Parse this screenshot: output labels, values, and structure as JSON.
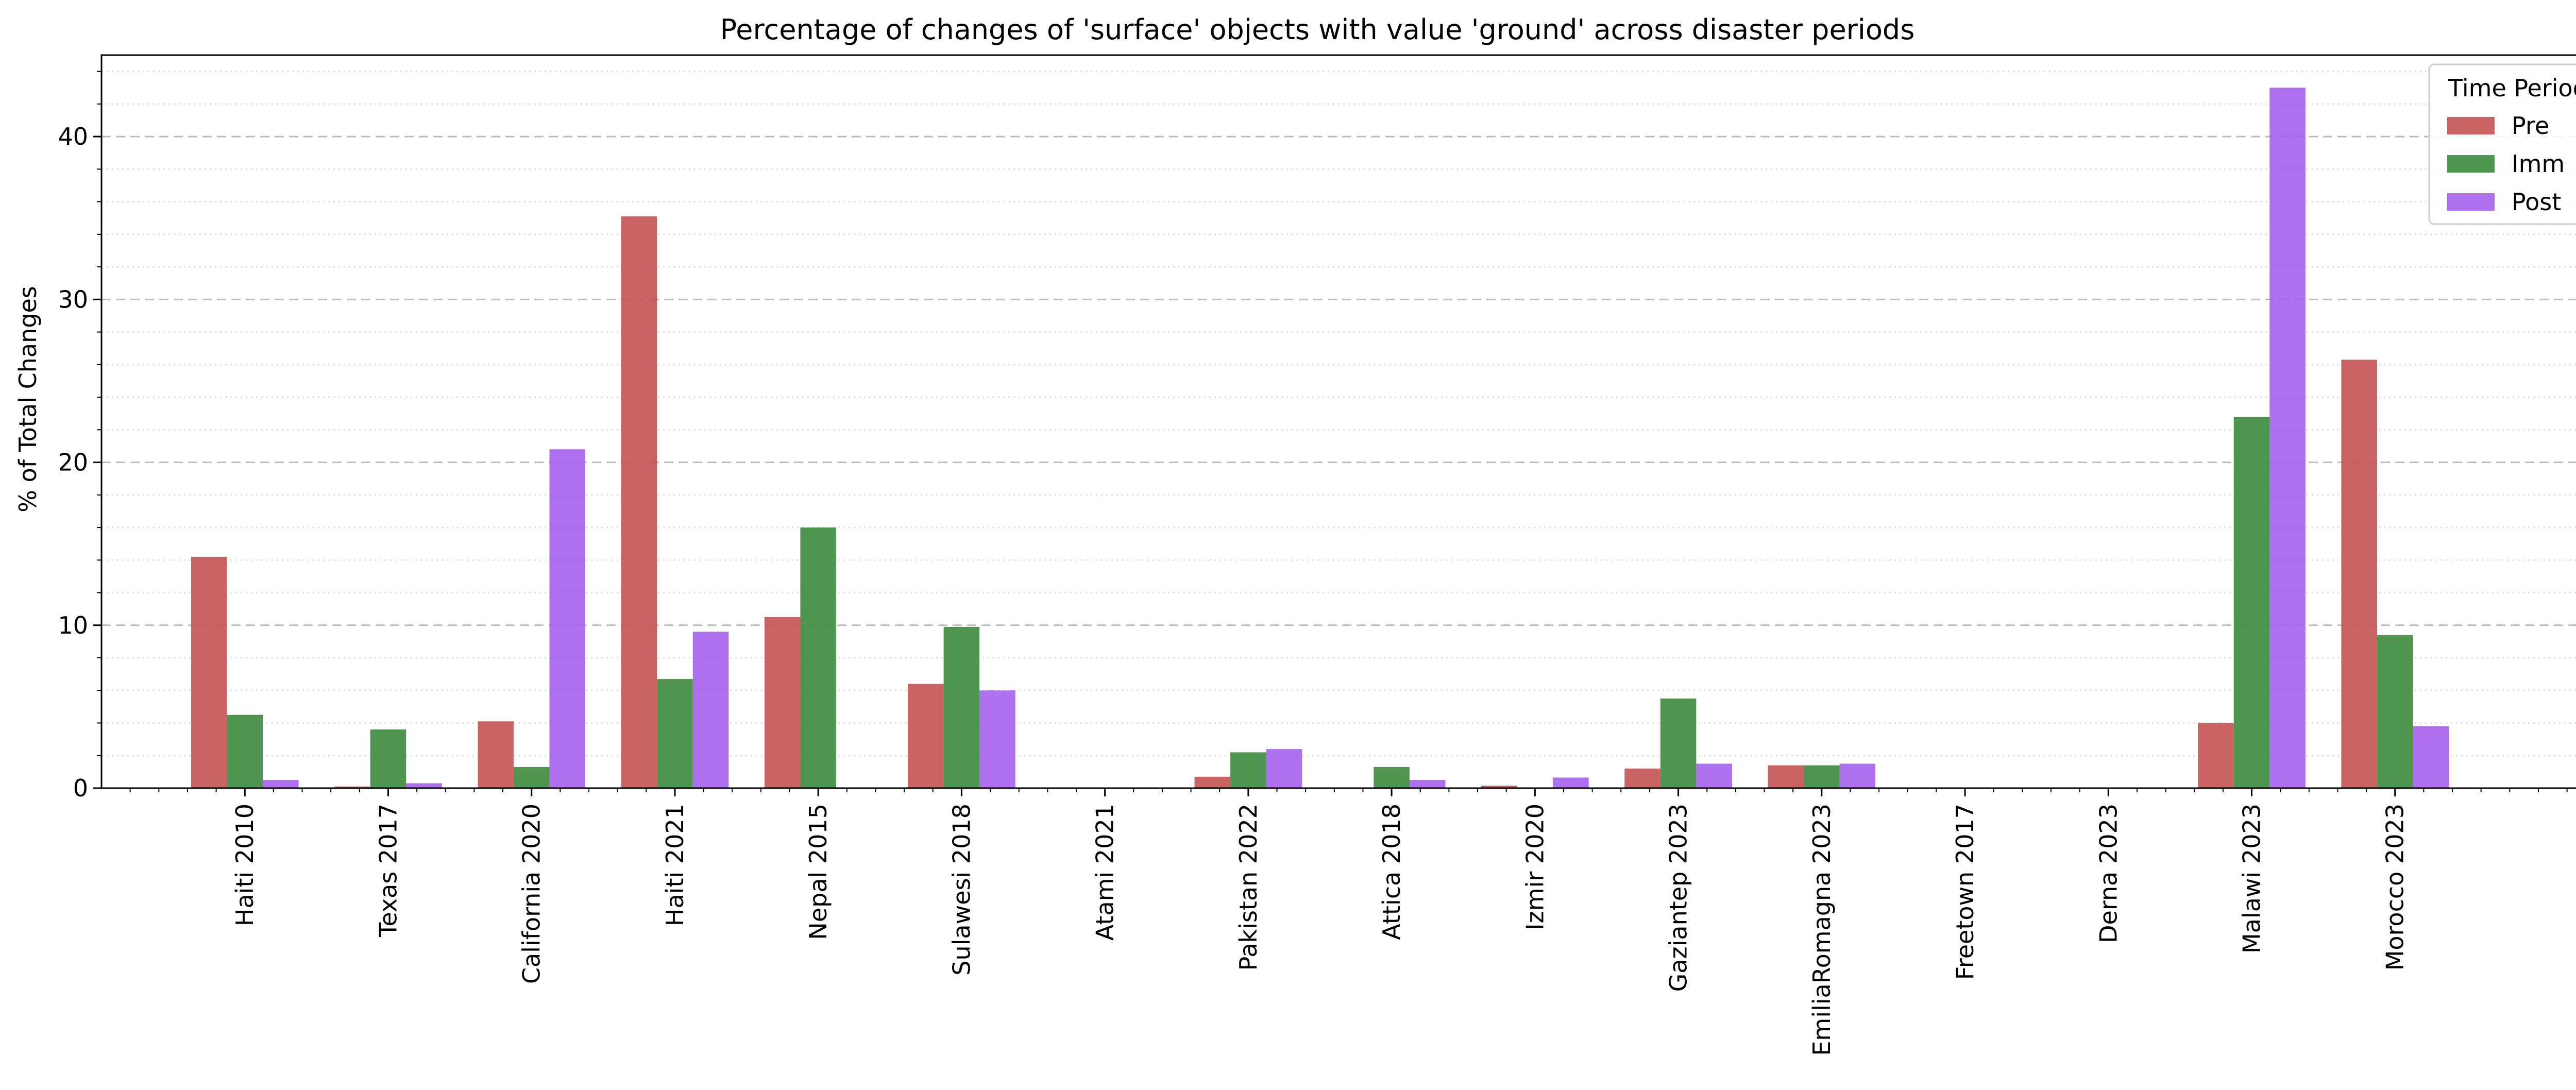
{
  "chart_data": {
    "type": "bar",
    "title": "Percentage of changes of 'surface' objects with value 'ground' across disaster periods",
    "xlabel": "",
    "ylabel": "% of Total Changes",
    "ylim": [
      0,
      45
    ],
    "yticks": [
      0,
      10,
      20,
      30,
      40
    ],
    "grid": "major dashed, minor dotted",
    "legend": {
      "title": "Time Period",
      "placement": "top-right"
    },
    "categories": [
      "Haiti 2010",
      "Texas 2017",
      "California 2020",
      "Haiti 2021",
      "Nepal 2015",
      "Sulawesi 2018",
      "Atami 2021",
      "Pakistan 2022",
      "Attica 2018",
      "Izmir 2020",
      "Gaziantep 2023",
      "EmiliaRomagna 2023",
      "Freetown 2017",
      "Derna 2023",
      "Malawi 2023",
      "Morocco 2023"
    ],
    "series": [
      {
        "name": "Pre",
        "color": "#c45353",
        "values": [
          14.2,
          0.1,
          4.1,
          35.1,
          10.5,
          6.4,
          0,
          0.7,
          0,
          0.15,
          1.2,
          1.4,
          0,
          0,
          4.0,
          26.3
        ]
      },
      {
        "name": "Imm",
        "color": "#3c8a3c",
        "values": [
          4.5,
          3.6,
          1.3,
          6.7,
          16.0,
          9.9,
          0,
          2.2,
          1.3,
          0,
          5.5,
          1.4,
          0,
          0,
          22.8,
          9.4
        ]
      },
      {
        "name": "Post",
        "color": "#a660ee",
        "values": [
          0.5,
          0.3,
          20.8,
          9.6,
          0,
          6.0,
          0,
          2.4,
          0.5,
          0.65,
          1.5,
          1.5,
          0,
          0,
          43.0,
          3.8
        ]
      }
    ]
  }
}
